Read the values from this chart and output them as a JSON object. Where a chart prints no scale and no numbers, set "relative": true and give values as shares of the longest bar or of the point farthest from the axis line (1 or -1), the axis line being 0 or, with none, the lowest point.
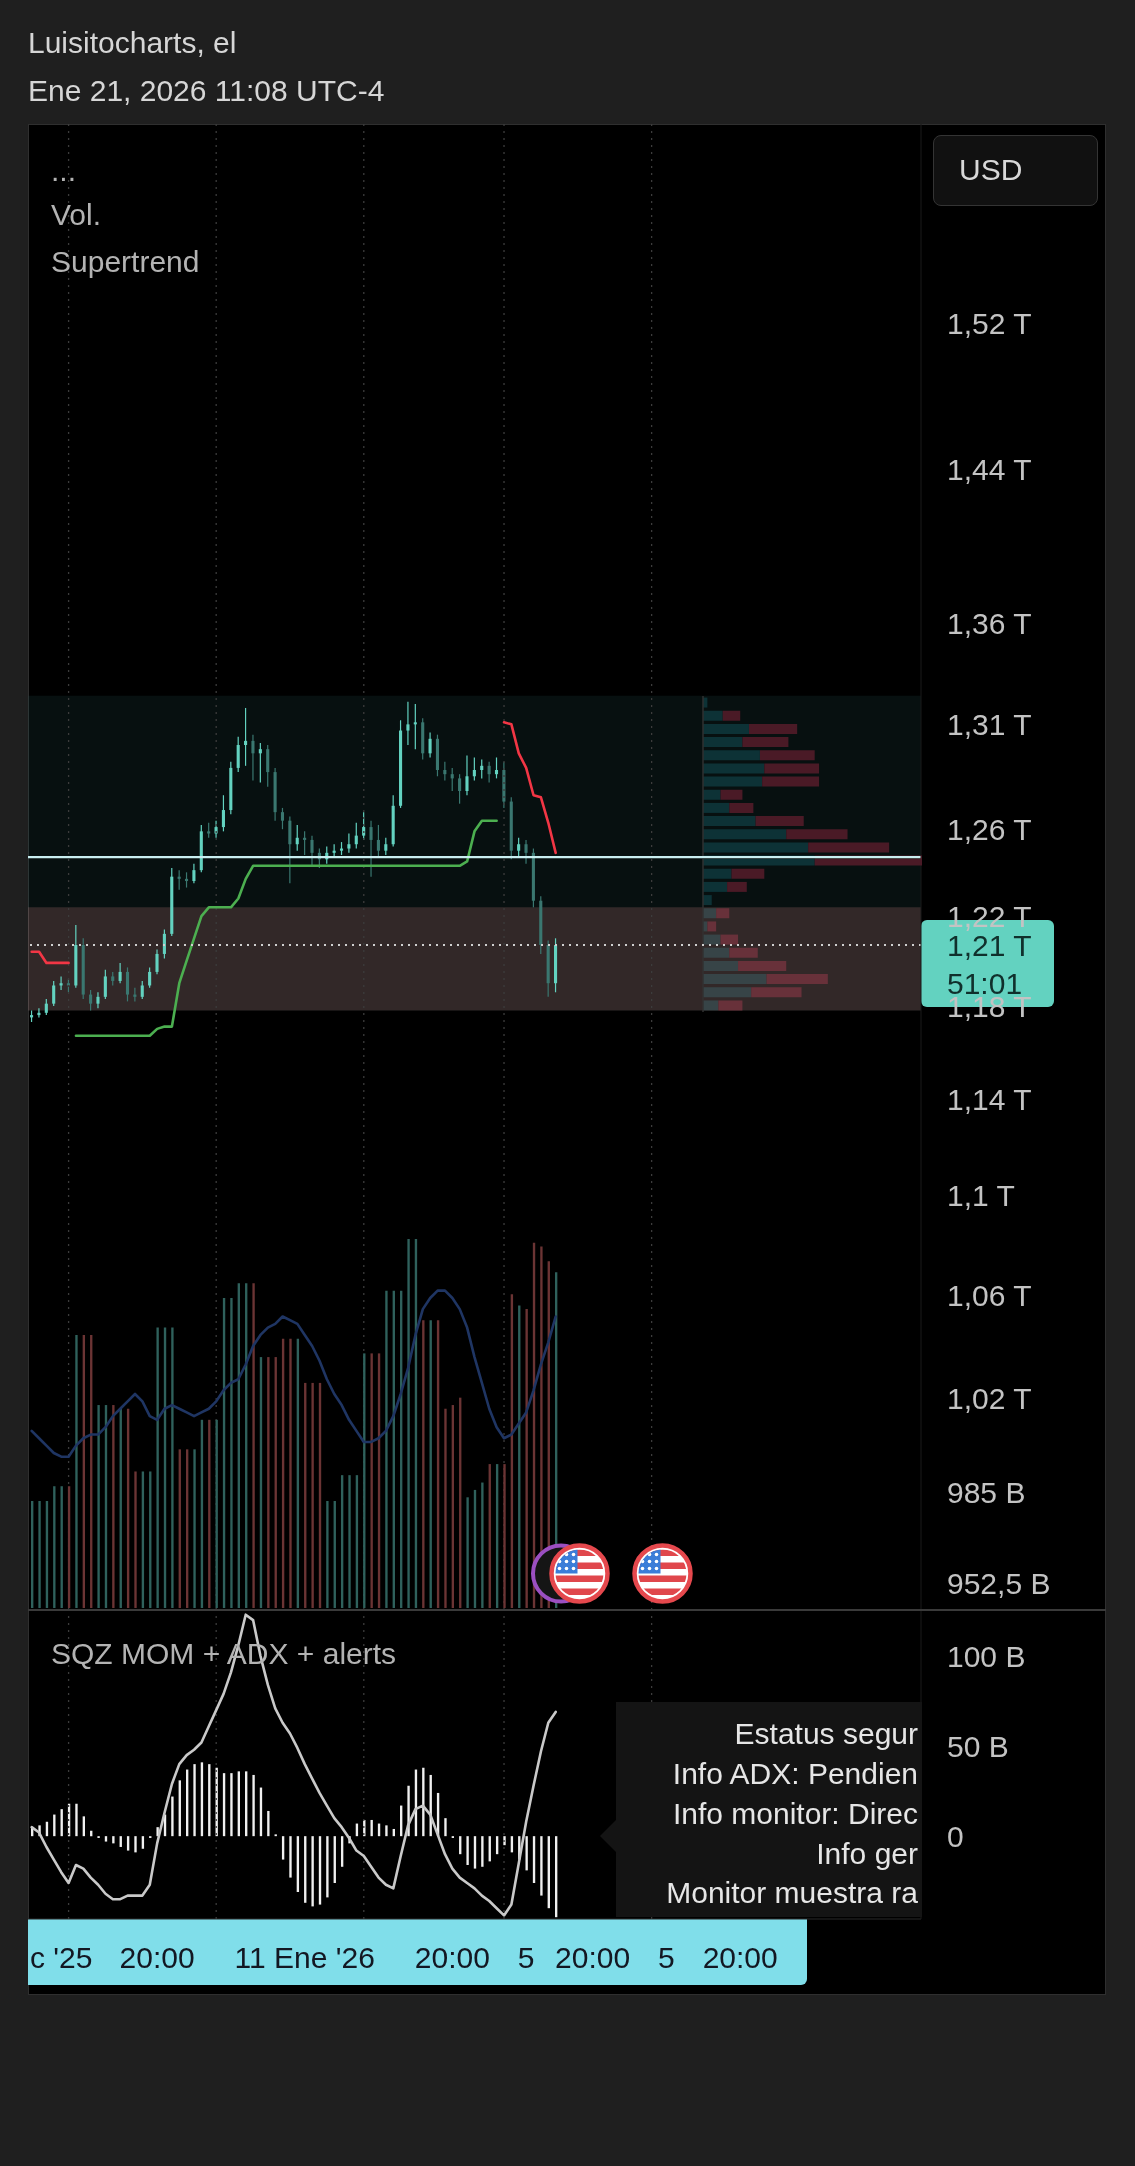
{
  "chart_data": [
    {
      "type": "candlestick",
      "title": "Luisitocharts, el",
      "subtitle": "Ene 21, 2026 11:08 UTC-4",
      "annotations": [
        "...",
        "Vol.",
        "Supertrend",
        "USD",
        "51:01"
      ],
      "categories": [
        null,
        null,
        null,
        null,
        null,
        null,
        null,
        null,
        null,
        null,
        null,
        null,
        null,
        null,
        null,
        null,
        null,
        null,
        null,
        null,
        null,
        null,
        null,
        null,
        null,
        null,
        null,
        null,
        null,
        null,
        null,
        null,
        null,
        null,
        null,
        null,
        null,
        null,
        null,
        null,
        null,
        null,
        null,
        null,
        null,
        null,
        null,
        null,
        null,
        null,
        null,
        null,
        null,
        null,
        null,
        null,
        null,
        null,
        null,
        null,
        null,
        null,
        null,
        null,
        null,
        null,
        null,
        null,
        null,
        null,
        null,
        null,
        null,
        null,
        null,
        null,
        null,
        null,
        null,
        null,
        null,
        null,
        null,
        null,
        null,
        null,
        null,
        null,
        null,
        null,
        null,
        null,
        null,
        null,
        null,
        null,
        null,
        null,
        null,
        null,
        null,
        null,
        null,
        null,
        null,
        null,
        null,
        null,
        null,
        null,
        null,
        null,
        null,
        null,
        null,
        null,
        null,
        null,
        null,
        null,
        null
      ],
      "ohlc": [
        [
          1175000000000.0,
          1178000000000.0,
          1173000000000.0,
          1176000000000.0
        ],
        [
          1176000000000.0,
          1179000000000.0,
          1175000000000.0,
          1177000000000.0
        ],
        [
          1177000000000.0,
          1183000000000.0,
          1176000000000.0,
          1181000000000.0
        ],
        [
          1181000000000.0,
          1191000000000.0,
          1180000000000.0,
          1189000000000.0
        ],
        [
          1189000000000.0,
          1193000000000.0,
          1187000000000.0,
          1190000000000.0
        ],
        [
          1190000000000.0,
          1192000000000.0,
          1186000000000.0,
          1189000000000.0
        ],
        [
          1189000000000.0,
          1216000000000.0,
          1188000000000.0,
          1207000000000.0
        ],
        [
          1207000000000.0,
          1210000000000.0,
          1183000000000.0,
          1185000000000.0
        ],
        [
          1185000000000.0,
          1187000000000.0,
          1178000000000.0,
          1181000000000.0
        ],
        [
          1181000000000.0,
          1186000000000.0,
          1179000000000.0,
          1184000000000.0
        ],
        [
          1184000000000.0,
          1196000000000.0,
          1183000000000.0,
          1193000000000.0
        ],
        [
          1193000000000.0,
          1195000000000.0,
          1189000000000.0,
          1191000000000.0
        ],
        [
          1191000000000.0,
          1199000000000.0,
          1190000000000.0,
          1195000000000.0
        ],
        [
          1195000000000.0,
          1197000000000.0,
          1182000000000.0,
          1185000000000.0
        ],
        [
          1185000000000.0,
          1188000000000.0,
          1182000000000.0,
          1184000000000.0
        ],
        [
          1184000000000.0,
          1191000000000.0,
          1183000000000.0,
          1189000000000.0
        ],
        [
          1189000000000.0,
          1197000000000.0,
          1188000000000.0,
          1195000000000.0
        ],
        [
          1195000000000.0,
          1205000000000.0,
          1194000000000.0,
          1203000000000.0
        ],
        [
          1203000000000.0,
          1214000000000.0,
          1201000000000.0,
          1212000000000.0
        ],
        [
          1212000000000.0,
          1242000000000.0,
          1211000000000.0,
          1238000000000.0
        ],
        [
          1238000000000.0,
          1241000000000.0,
          1232000000000.0,
          1237000000000.0
        ],
        [
          1237000000000.0,
          1240000000000.0,
          1233000000000.0,
          1236000000000.0
        ],
        [
          1236000000000.0,
          1244000000000.0,
          1235000000000.0,
          1241000000000.0
        ],
        [
          1241000000000.0,
          1262000000000.0,
          1240000000000.0,
          1259000000000.0
        ],
        [
          1259000000000.0,
          1263000000000.0,
          1256000000000.0,
          1258000000000.0
        ],
        [
          1258000000000.0,
          1264000000000.0,
          1256000000000.0,
          1261000000000.0
        ],
        [
          1261000000000.0,
          1276000000000.0,
          1259000000000.0,
          1269000000000.0
        ],
        [
          1269000000000.0,
          1292000000000.0,
          1267000000000.0,
          1289000000000.0
        ],
        [
          1289000000000.0,
          1304000000000.0,
          1287000000000.0,
          1300000000000.0
        ],
        [
          1300000000000.0,
          1318000000000.0,
          1290000000000.0,
          1302000000000.0
        ],
        [
          1302000000000.0,
          1305000000000.0,
          1283000000000.0,
          1296000000000.0
        ],
        [
          1296000000000.0,
          1301000000000.0,
          1282000000000.0,
          1298000000000.0
        ],
        [
          1298000000000.0,
          1300000000000.0,
          1280000000000.0,
          1287000000000.0
        ],
        [
          1287000000000.0,
          1289000000000.0,
          1264000000000.0,
          1268000000000.0
        ],
        [
          1268000000000.0,
          1270000000000.0,
          1260000000000.0,
          1264000000000.0
        ],
        [
          1264000000000.0,
          1266000000000.0,
          1235000000000.0,
          1253000000000.0
        ],
        [
          1253000000000.0,
          1262000000000.0,
          1250000000000.0,
          1256000000000.0
        ],
        [
          1256000000000.0,
          1259000000000.0,
          1248000000000.0,
          1255000000000.0
        ],
        [
          1255000000000.0,
          1257000000000.0,
          1243000000000.0,
          1249000000000.0
        ],
        [
          1249000000000.0,
          1251000000000.0,
          1242000000000.0,
          1246000000000.0
        ],
        [
          1246000000000.0,
          1252000000000.0,
          1244000000000.0,
          1249000000000.0
        ],
        [
          1249000000000.0,
          1253000000000.0,
          1247000000000.0,
          1250000000000.0
        ],
        [
          1250000000000.0,
          1254000000000.0,
          1248000000000.0,
          1251000000000.0
        ],
        [
          1251000000000.0,
          1258000000000.0,
          1249000000000.0,
          1253000000000.0
        ],
        [
          1253000000000.0,
          1263000000000.0,
          1251000000000.0,
          1257000000000.0
        ],
        [
          1257000000000.0,
          1268000000000.0,
          1255000000000.0,
          1261000000000.0
        ],
        [
          1261000000000.0,
          1264000000000.0,
          1238000000000.0,
          1255000000000.0
        ],
        [
          1255000000000.0,
          1262000000000.0,
          1247000000000.0,
          1250000000000.0
        ],
        [
          1250000000000.0,
          1256000000000.0,
          1248000000000.0,
          1253000000000.0
        ],
        [
          1253000000000.0,
          1276000000000.0,
          1252000000000.0,
          1271000000000.0
        ],
        [
          1271000000000.0,
          1312000000000.0,
          1270000000000.0,
          1307000000000.0
        ],
        [
          1307000000000.0,
          1321000000000.0,
          1300000000000.0,
          1310000000000.0
        ],
        [
          1310000000000.0,
          1320000000000.0,
          1298000000000.0,
          1311000000000.0
        ],
        [
          1311000000000.0,
          1313000000000.0,
          1293000000000.0,
          1296000000000.0
        ],
        [
          1296000000000.0,
          1306000000000.0,
          1294000000000.0,
          1303000000000.0
        ],
        [
          1303000000000.0,
          1305000000000.0,
          1285000000000.0,
          1288000000000.0
        ],
        [
          1288000000000.0,
          1292000000000.0,
          1283000000000.0,
          1286000000000.0
        ],
        [
          1286000000000.0,
          1289000000000.0,
          1278000000000.0,
          1284000000000.0
        ],
        [
          1284000000000.0,
          1286000000000.0,
          1272000000000.0,
          1278000000000.0
        ],
        [
          1278000000000.0,
          1295000000000.0,
          1276000000000.0,
          1285000000000.0
        ],
        [
          1285000000000.0,
          1294000000000.0,
          1283000000000.0,
          1288000000000.0
        ],
        [
          1288000000000.0,
          1293000000000.0,
          1284000000000.0,
          1290000000000.0
        ],
        [
          1290000000000.0,
          1292000000000.0,
          1282000000000.0,
          1286000000000.0
        ],
        [
          1286000000000.0,
          1294000000000.0,
          1284000000000.0,
          1288000000000.0
        ],
        [
          1288000000000.0,
          1292000000000.0,
          1270000000000.0,
          1273000000000.0
        ],
        [
          1273000000000.0,
          1275000000000.0,
          1246000000000.0,
          1250000000000.0
        ],
        [
          1250000000000.0,
          1256000000000.0,
          1247000000000.0,
          1253000000000.0
        ],
        [
          1253000000000.0,
          1255000000000.0,
          1244000000000.0,
          1249000000000.0
        ],
        [
          1249000000000.0,
          1251000000000.0,
          1224000000000.0,
          1227000000000.0
        ],
        [
          1227000000000.0,
          1229000000000.0,
          1203000000000.0,
          1207000000000.0
        ],
        [
          1207000000000.0,
          1209000000000.0,
          1184000000000.0,
          1190000000000.0
        ],
        [
          1190000000000.0,
          1210000000000.0,
          1186000000000.0,
          1207000000000.0
        ],
        null,
        null,
        null,
        null,
        null,
        null,
        null,
        null,
        null,
        null,
        null,
        null,
        null,
        null,
        null,
        null,
        null,
        null,
        null,
        null,
        null,
        null,
        null,
        null,
        null,
        null,
        null,
        null,
        null,
        null,
        null,
        null,
        null,
        null,
        null,
        null,
        null,
        null,
        null,
        null,
        null,
        null,
        null,
        null,
        null,
        null,
        null,
        null,
        null
      ],
      "colors": [
        "#63d2c0",
        "#63d2c0",
        "#63d2c0",
        "#63d2c0",
        "#63d2c0",
        "#3a7770",
        "#63d2c0",
        "#3a7770",
        "#3a7770",
        "#63d2c0",
        "#63d2c0",
        "#3a7770",
        "#63d2c0",
        "#3a7770",
        "#3a7770",
        "#63d2c0",
        "#63d2c0",
        "#63d2c0",
        "#63d2c0",
        "#63d2c0",
        "#3a7770",
        "#3a7770",
        "#63d2c0",
        "#63d2c0",
        "#3a7770",
        "#63d2c0",
        "#63d2c0",
        "#63d2c0",
        "#63d2c0",
        "#63d2c0",
        "#3a7770",
        "#63d2c0",
        "#3a7770",
        "#3a7770",
        "#3a7770",
        "#3a7770",
        "#63d2c0",
        "#3a7770",
        "#3a7770",
        "#3a7770",
        "#63d2c0",
        "#63d2c0",
        "#63d2c0",
        "#63d2c0",
        "#63d2c0",
        "#63d2c0",
        "#3a7770",
        "#3a7770",
        "#63d2c0",
        "#63d2c0",
        "#63d2c0",
        "#63d2c0",
        "#63d2c0",
        "#3a7770",
        "#63d2c0",
        "#3a7770",
        "#3a7770",
        "#3a7770",
        "#3a7770",
        "#63d2c0",
        "#63d2c0",
        "#63d2c0",
        "#3a7770",
        "#63d2c0",
        "#3a7770",
        "#3a7770",
        "#63d2c0",
        "#3a7770",
        "#3a7770",
        "#3a7770",
        "#3a7770",
        "#63d2c0",
        null,
        null,
        null,
        null,
        null,
        null,
        null,
        null,
        null,
        null,
        null,
        null,
        null,
        null,
        null,
        null,
        null,
        null,
        null,
        null,
        null,
        null,
        null,
        null,
        null,
        null,
        null,
        null,
        null,
        null,
        null,
        null,
        null,
        null,
        null,
        null,
        null,
        null,
        null,
        null,
        null,
        null,
        null,
        null,
        null,
        null,
        null,
        null,
        null
      ],
      "series": [
        {
          "type": "line",
          "color": "#f23645",
          "values": [
            1204000000000.0,
            1204000000000.0,
            1199000000000.0,
            1199000000000.0,
            1199000000000.0,
            1199000000000.0,
            null,
            null,
            null,
            null,
            null,
            null,
            null,
            null,
            null,
            null,
            null,
            null,
            null,
            null,
            null,
            null,
            null,
            null,
            null,
            null,
            null,
            null,
            null,
            null,
            null,
            null,
            null,
            null,
            null,
            null,
            null,
            null,
            null,
            null,
            null,
            null,
            null,
            null,
            null,
            null,
            null,
            null,
            null,
            null,
            null,
            null,
            null,
            null,
            null,
            null,
            null,
            null,
            null,
            null,
            null,
            null,
            null,
            null,
            1311000000000.0,
            1310000000000.0,
            1296000000000.0,
            1289000000000.0,
            1276000000000.0,
            1275000000000.0,
            1263000000000.0,
            1249000000000.0,
            null,
            null,
            null,
            null,
            null,
            null,
            null,
            null,
            null,
            null,
            null,
            null,
            null,
            null,
            null,
            null,
            null,
            null,
            null,
            null,
            null,
            null,
            null,
            null,
            null,
            null,
            null,
            null,
            null,
            null,
            null,
            null,
            null,
            null,
            null,
            null,
            null,
            null,
            null,
            null,
            null,
            null,
            null,
            null,
            null,
            null,
            null,
            null,
            null
          ]
        },
        {
          "type": "line",
          "color": "#4caf50",
          "values": [
            null,
            null,
            null,
            null,
            null,
            null,
            1167000000000.0,
            1167000000000.0,
            1167000000000.0,
            1167000000000.0,
            1167000000000.0,
            1167000000000.0,
            1167000000000.0,
            1167000000000.0,
            1167000000000.0,
            1167000000000.0,
            1167000000000.0,
            1170000000000.0,
            1171000000000.0,
            1171000000000.0,
            1190000000000.0,
            1200000000000.0,
            1210000000000.0,
            1220000000000.0,
            1224000000000.0,
            1224000000000.0,
            1224000000000.0,
            1224000000000.0,
            1228000000000.0,
            1237000000000.0,
            1243000000000.0,
            1243000000000.0,
            1243000000000.0,
            1243000000000.0,
            1243000000000.0,
            1243000000000.0,
            1243000000000.0,
            1243000000000.0,
            1243000000000.0,
            1243000000000.0,
            1243000000000.0,
            1243000000000.0,
            1243000000000.0,
            1243000000000.0,
            1243000000000.0,
            1243000000000.0,
            1243000000000.0,
            1243000000000.0,
            1243000000000.0,
            1243000000000.0,
            1243000000000.0,
            1243000000000.0,
            1243000000000.0,
            1243000000000.0,
            1243000000000.0,
            1243000000000.0,
            1243000000000.0,
            1243000000000.0,
            1243000000000.0,
            1245000000000.0,
            1259000000000.0,
            1264000000000.0,
            1264000000000.0,
            1264000000000.0,
            null,
            null,
            null,
            null,
            null,
            null,
            null,
            null,
            null,
            null,
            null,
            null,
            null,
            null,
            null,
            null,
            null,
            null,
            null,
            null,
            null,
            null,
            null,
            null,
            null,
            null,
            null,
            null,
            null,
            null,
            null,
            null,
            null,
            null,
            null,
            null,
            null,
            null,
            null,
            null,
            null,
            null,
            null,
            null,
            null,
            null,
            null,
            null,
            null,
            null,
            null,
            null,
            null,
            null,
            null,
            null,
            null
          ]
        }
      ],
      "ylim": [
        943000000000.0,
        1637000000000.0
      ],
      "log": "y",
      "tick_labels": "y",
      "yticks": [
        {
          "value": 1520000000000.0,
          "label": "1,52 T"
        },
        {
          "value": 1440000000000.0,
          "label": "1,44 T"
        },
        {
          "value": 1360000000000.0,
          "label": "1,36 T"
        },
        {
          "value": 1310000000000.0,
          "label": "1,31 T"
        },
        {
          "value": 1260000000000.0,
          "label": "1,26 T"
        },
        {
          "value": 1220000000000.0,
          "label": "1,22 T"
        },
        {
          "value": 1180000000000.0,
          "label": "1,18 T"
        },
        {
          "value": 1140000000000.0,
          "label": "1,14 T"
        },
        {
          "value": 1100000000000.0,
          "label": "1,1 T"
        },
        {
          "value": 1060000000000.0,
          "label": "1,06 T"
        },
        {
          "value": 1020000000000.0,
          "label": "1,02 T"
        },
        {
          "value": 985000000000.0,
          "label": "985 B"
        },
        {
          "value": 952500000000.0,
          "label": "952,5 B"
        }
      ],
      "ref_lines": [
        {
          "axis": "y",
          "value": 1247000000000.0,
          "color": "#c8eef0"
        },
        {
          "axis": "y",
          "value": 1207000000000.0,
          "label": "1,21 T",
          "color": "#d0d0d0",
          "line_style": "dotted"
        }
      ],
      "bands": [
        {
          "axis": "y",
          "from": 1178000000000.0,
          "to": 1324000000000.0,
          "color": "#235050"
        },
        {
          "axis": "y",
          "from": 1178000000000.0,
          "to": 1224000000000.0,
          "color": "#e08a8a"
        }
      ]
    },
    {
      "type": "bar",
      "relative": true,
      "tick_labels": false,
      "categories": [
        null,
        null,
        null,
        null,
        null,
        null,
        null,
        null,
        null,
        null,
        null,
        null,
        null,
        null,
        null,
        null,
        null,
        null,
        null,
        null,
        null,
        null,
        null,
        null,
        null,
        null,
        null,
        null,
        null,
        null,
        null,
        null,
        null,
        null,
        null,
        null,
        null,
        null,
        null,
        null,
        null,
        null,
        null,
        null,
        null,
        null,
        null,
        null,
        null,
        null,
        null,
        null,
        null,
        null,
        null,
        null,
        null,
        null,
        null,
        null,
        null,
        null,
        null,
        null,
        null,
        null,
        null,
        null,
        null,
        null,
        null,
        null,
        null,
        null,
        null,
        null,
        null,
        null,
        null,
        null,
        null,
        null,
        null,
        null,
        null,
        null,
        null,
        null,
        null,
        null,
        null,
        null,
        null,
        null,
        null,
        null,
        null,
        null,
        null,
        null,
        null,
        null,
        null,
        null,
        null,
        null,
        null,
        null,
        null,
        null,
        null,
        null,
        null,
        null,
        null,
        null,
        null,
        null,
        null,
        null,
        null
      ],
      "series": [
        {
          "values": [
            0.29,
            0.29,
            0.29,
            0.33,
            0.33,
            0.33,
            0.74,
            0.74,
            0.74,
            0.55,
            0.55,
            0.55,
            0.54,
            0.54,
            0.37,
            0.37,
            0.37,
            0.76,
            0.76,
            0.76,
            0.43,
            0.43,
            0.43,
            0.51,
            0.51,
            0.51,
            0.84,
            0.84,
            0.88,
            0.88,
            0.88,
            0.68,
            0.68,
            0.68,
            0.73,
            0.73,
            0.73,
            0.61,
            0.61,
            0.61,
            0.29,
            0.29,
            0.36,
            0.36,
            0.36,
            0.69,
            0.69,
            0.69,
            0.86,
            0.86,
            0.86,
            1,
            1,
            0.78,
            0.78,
            0.78,
            0.54,
            0.55,
            0.57,
            0.3,
            0.32,
            0.34,
            0.39,
            0.39,
            0.39,
            0.85,
            0.82,
            0.81,
            0.99,
            0.98,
            0.94,
            0.91,
            null,
            null,
            null,
            null,
            null,
            null,
            null,
            null,
            null,
            null,
            null,
            null,
            null,
            null,
            null,
            null,
            null,
            null,
            null,
            null,
            null,
            null,
            null,
            null,
            null,
            null,
            null,
            null,
            null,
            null,
            null,
            null,
            null,
            null,
            null,
            null,
            null,
            null,
            null,
            null,
            null,
            null,
            null,
            null,
            null,
            null,
            null,
            null,
            null
          ],
          "colors": [
            "#2f615c",
            "#2f615c",
            "#2f615c",
            "#2f615c",
            "#2f615c",
            "#6b3434",
            "#2f615c",
            "#6b3434",
            "#6b3434",
            "#2f615c",
            "#2f615c",
            "#6b3434",
            "#2f615c",
            "#6b3434",
            "#6b3434",
            "#2f615c",
            "#2f615c",
            "#2f615c",
            "#2f615c",
            "#2f615c",
            "#6b3434",
            "#6b3434",
            "#2f615c",
            "#2f615c",
            "#6b3434",
            "#2f615c",
            "#2f615c",
            "#2f615c",
            "#2f615c",
            "#2f615c",
            "#6b3434",
            "#2f615c",
            "#6b3434",
            "#6b3434",
            "#6b3434",
            "#6b3434",
            "#2f615c",
            "#6b3434",
            "#6b3434",
            "#6b3434",
            "#2f615c",
            "#2f615c",
            "#2f615c",
            "#2f615c",
            "#2f615c",
            "#2f615c",
            "#6b3434",
            "#6b3434",
            "#2f615c",
            "#2f615c",
            "#2f615c",
            "#2f615c",
            "#2f615c",
            "#6b3434",
            "#2f615c",
            "#6b3434",
            "#6b3434",
            "#6b3434",
            "#6b3434",
            "#2f615c",
            "#2f615c",
            "#2f615c",
            "#6b3434",
            "#2f615c",
            "#6b3434",
            "#6b3434",
            "#2f615c",
            "#6b3434",
            "#6b3434",
            "#6b3434",
            "#6b3434",
            "#2f615c",
            null,
            null,
            null,
            null,
            null,
            null,
            null,
            null,
            null,
            null,
            null,
            null,
            null,
            null,
            null,
            null,
            null,
            null,
            null,
            null,
            null,
            null,
            null,
            null,
            null,
            null,
            null,
            null,
            null,
            null,
            null,
            null,
            null,
            null,
            null,
            null,
            null,
            null,
            null,
            null,
            null,
            null,
            null,
            null,
            null,
            null,
            null,
            null,
            null
          ]
        },
        {
          "type": "line",
          "color": "#1f3563",
          "values": [
            0.48,
            0.46,
            0.44,
            0.42,
            0.41,
            0.41,
            0.44,
            0.46,
            0.47,
            0.47,
            0.49,
            0.52,
            0.54,
            0.56,
            0.58,
            0.56,
            0.52,
            0.51,
            0.54,
            0.55,
            0.54,
            0.53,
            0.52,
            0.53,
            0.54,
            0.56,
            0.59,
            0.61,
            0.62,
            0.66,
            0.71,
            0.74,
            0.76,
            0.77,
            0.79,
            0.78,
            0.77,
            0.74,
            0.71,
            0.67,
            0.62,
            0.58,
            0.55,
            0.51,
            0.48,
            0.45,
            0.45,
            0.46,
            0.48,
            0.52,
            0.58,
            0.65,
            0.74,
            0.81,
            0.84,
            0.86,
            0.86,
            0.84,
            0.81,
            0.76,
            0.68,
            0.61,
            0.54,
            0.49,
            0.46,
            0.47,
            0.5,
            0.53,
            0.59,
            0.66,
            0.72,
            0.79,
            null,
            null,
            null,
            null,
            null,
            null,
            null,
            null,
            null,
            null,
            null,
            null,
            null,
            null,
            null,
            null,
            null,
            null,
            null,
            null,
            null,
            null,
            null,
            null,
            null,
            null,
            null,
            null,
            null,
            null,
            null,
            null,
            null,
            null,
            null,
            null,
            null,
            null,
            null,
            null,
            null,
            null,
            null,
            null,
            null,
            null,
            null,
            null,
            null
          ]
        }
      ]
    },
    {
      "type": "bar",
      "orientation": "horizontal",
      "stacked": true,
      "relative": true,
      "tick_labels": false,
      "categories": [
        null,
        null,
        null,
        null,
        null,
        null,
        null,
        null,
        null,
        null,
        null,
        null,
        null,
        null,
        null,
        null,
        null,
        null,
        null,
        null,
        null,
        null,
        null,
        null
      ],
      "series": [
        {
          "colors": [
            "#0d3236",
            "#0d3236",
            "#0d3236",
            "#0d3236",
            "#0d3236",
            "#0d3236",
            "#0d3236",
            "#0d3236",
            "#0d3236",
            "#0d3236",
            "#0d3236",
            "#0d3236",
            "#0d3236",
            "#0d3236",
            "#0d3236",
            "#0d3236",
            "#374447",
            "#374447",
            "#374447",
            "#374447",
            "#374447",
            "#374447",
            "#374447",
            "#374447"
          ],
          "values": [
            0.02,
            0.09,
            0.21,
            0.18,
            0.26,
            0.28,
            0.27,
            0.08,
            0.12,
            0.24,
            0.38,
            0.48,
            0.51,
            0.13,
            0.11,
            0.04,
            0.06,
            0.02,
            0.08,
            0.12,
            0.16,
            0.29,
            0.22,
            0.07
          ]
        },
        {
          "colors": [
            "#4a1a26",
            "#4a1a26",
            "#4a1a26",
            "#4a1a26",
            "#4a1a26",
            "#4a1a26",
            "#4a1a26",
            "#4a1a26",
            "#4a1a26",
            "#4a1a26",
            "#4a1a26",
            "#4a1a26",
            "#4a1a26",
            "#4a1a26",
            "#4a1a26",
            "#4a1a26",
            "#68313a",
            "#68313a",
            "#68313a",
            "#68313a",
            "#68313a",
            "#68313a",
            "#68313a",
            "#68313a"
          ],
          "values": [
            null,
            0.08,
            0.22,
            0.21,
            0.25,
            0.25,
            0.26,
            0.1,
            0.11,
            0.22,
            0.28,
            0.37,
            0.49,
            0.15,
            0.09,
            null,
            0.06,
            0.04,
            0.08,
            0.13,
            0.22,
            0.28,
            0.23,
            0.11
          ]
        }
      ]
    },
    {
      "type": "bar",
      "title": "SQZ MOM + ADX + alerts",
      "annotations": [
        "Estatus segur",
        "Info ADX: Pendien",
        "Info monitor: Direc",
        "Info ger",
        "Monitor muestra ra"
      ],
      "categories": [
        null,
        null,
        null,
        null,
        "c '25",
        null,
        null,
        null,
        null,
        null,
        null,
        null,
        null,
        null,
        null,
        null,
        null,
        "20:00",
        null,
        null,
        null,
        null,
        null,
        null,
        null,
        null,
        null,
        null,
        null,
        null,
        null,
        null,
        null,
        null,
        null,
        null,
        null,
        "11 Ene '26",
        null,
        null,
        null,
        null,
        null,
        null,
        null,
        null,
        null,
        null,
        null,
        null,
        null,
        null,
        null,
        null,
        null,
        null,
        null,
        "20:00",
        null,
        null,
        null,
        null,
        null,
        null,
        null,
        null,
        null,
        "5",
        null,
        null,
        null,
        null,
        null,
        null,
        null,
        null,
        "20:00",
        null,
        null,
        null,
        null,
        null,
        null,
        null,
        null,
        null,
        "5",
        null,
        null,
        null,
        null,
        null,
        null,
        null,
        null,
        null,
        "20:00",
        null,
        null,
        null,
        null,
        null,
        null,
        null,
        null,
        null,
        null,
        null,
        null,
        null,
        null,
        null,
        null,
        null,
        null,
        null,
        null,
        null,
        null,
        null,
        null
      ],
      "ylim": [
        -46,
        125.6
      ],
      "yticks": [
        {
          "value": 100,
          "label": "100 B"
        },
        {
          "value": 50,
          "label": "50 B"
        },
        0
      ],
      "series": [
        {
          "color": "#f0f0f0",
          "values": [
            5,
            6,
            8,
            12,
            15,
            18,
            18,
            11,
            3,
            -1,
            -3,
            -4,
            -6,
            -8,
            -9,
            -7,
            -1,
            5,
            12,
            22,
            31,
            37,
            40,
            41,
            40,
            38,
            35,
            35,
            36,
            36,
            34,
            27,
            14,
            1,
            -13,
            -23,
            -31,
            -37,
            -39,
            -38,
            -34,
            -26,
            -17,
            -4,
            7,
            9,
            9,
            7,
            6,
            4,
            17,
            28,
            37,
            38,
            34,
            24,
            10,
            -1,
            -10,
            -16,
            -18,
            -17,
            -14,
            -10,
            -5,
            -9,
            -13,
            -19,
            -26,
            -33,
            -40,
            -45,
            null,
            null,
            null,
            null,
            null,
            null,
            null,
            null,
            null,
            null,
            null,
            null,
            null,
            null,
            null,
            null,
            null,
            null,
            null,
            null,
            null,
            null,
            null,
            null,
            null,
            null,
            null,
            null,
            null,
            null,
            null,
            null,
            null,
            null,
            null,
            null,
            null,
            null,
            null,
            null,
            null,
            null,
            null,
            null,
            null,
            null,
            null,
            null,
            null
          ]
        },
        {
          "type": "line",
          "color": "#c9c9c9",
          "values": [
            5,
            2,
            -6,
            -13,
            -20,
            -26,
            -16,
            -18,
            -23,
            -27,
            -32,
            -35,
            -35,
            -33,
            -33,
            -33,
            -27,
            -4,
            13,
            29,
            40,
            45,
            48,
            52,
            61,
            70,
            79,
            91,
            106,
            123,
            120,
            100,
            84,
            71,
            63,
            57,
            49,
            40,
            32,
            24,
            17,
            10,
            5,
            -1,
            -8,
            -11,
            -17,
            -23,
            -27,
            -29,
            -11,
            6,
            15,
            17,
            12,
            1,
            -10,
            -18,
            -23,
            -26,
            -29,
            -33,
            -36,
            -40,
            -44,
            -38,
            -15,
            8,
            28,
            47,
            63,
            69,
            null,
            null,
            null,
            null,
            null,
            null,
            null,
            null,
            null,
            null,
            null,
            null,
            null,
            null,
            null,
            null,
            null,
            null,
            null,
            null,
            null,
            null,
            null,
            null,
            null,
            null,
            null,
            null,
            null,
            null,
            null,
            null,
            null,
            null,
            null,
            null,
            null,
            null,
            null,
            null,
            null,
            null,
            null,
            null,
            null,
            null,
            null,
            null,
            null
          ]
        }
      ]
    }
  ]
}
